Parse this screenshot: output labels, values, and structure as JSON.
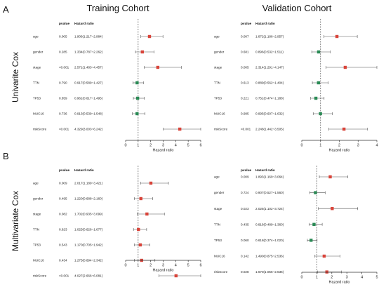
{
  "labels": {
    "panel_a": "A",
    "panel_b": "B",
    "training_title": "Training Cohort",
    "validation_title": "Validation Cohort",
    "row_a_title": "Univarite Cox",
    "row_b_title": "Multivariate Cox"
  },
  "colors": {
    "risk": "#d9443a",
    "protective": "#2a8a55",
    "ci_line": "#555555",
    "ref_line": "#555555",
    "axis": "#333333"
  },
  "chart_data": [
    {
      "type": "forest",
      "id": "uni-train",
      "header_pvalue": "pvalue",
      "header_hr": "Hazard ratio",
      "xlabel": "Hazard ratio",
      "xticks": [
        0,
        1,
        2,
        3,
        4,
        5,
        6
      ],
      "xlim": [
        0,
        6
      ],
      "ref_line": 1,
      "rows": [
        {
          "name": "age",
          "pvalue": "0.005",
          "hr_text": "1.906(1.217~2.984)",
          "hr": 1.906,
          "lo": 1.217,
          "hi": 2.984
        },
        {
          "name": "gender",
          "pvalue": "0.285",
          "hr_text": "1.334(0.787~2.262)",
          "hr": 1.334,
          "lo": 0.787,
          "hi": 2.262
        },
        {
          "name": "stage",
          "pvalue": "<0.001",
          "hr_text": "2.571(1.483~4.457)",
          "hr": 2.571,
          "lo": 1.483,
          "hi": 4.457
        },
        {
          "name": "TTN",
          "pvalue": "0.790",
          "hr_text": "0.917(0.589~1.427)",
          "hr": 0.917,
          "lo": 0.589,
          "hi": 1.427
        },
        {
          "name": "TP53",
          "pvalue": "0.859",
          "hr_text": "0.961(0.617~1.495)",
          "hr": 0.961,
          "lo": 0.617,
          "hi": 1.495
        },
        {
          "name": "MUC16",
          "pvalue": "0.736",
          "hr_text": "0.913(0.539~1.548)",
          "hr": 0.913,
          "lo": 0.539,
          "hi": 1.548
        },
        {
          "name": "riskScore",
          "pvalue": "<0.001",
          "hr_text": "4.329(3.003~6.242)",
          "hr": 4.329,
          "lo": 3.003,
          "hi": 6.242
        }
      ]
    },
    {
      "type": "forest",
      "id": "uni-valid",
      "header_pvalue": "pvalue",
      "header_hr": "Hazard ratio",
      "xlabel": "Hazard ratio",
      "xticks": [
        0,
        1,
        2,
        3,
        4
      ],
      "xlim": [
        0,
        4
      ],
      "ref_line": 1,
      "rows": [
        {
          "name": "age",
          "pvalue": "0.007",
          "hr_text": "1.872(1.186~2.957)",
          "hr": 1.872,
          "lo": 1.186,
          "hi": 2.957
        },
        {
          "name": "gender",
          "pvalue": "0.681",
          "hr_text": "0.896(0.532~1.511)",
          "hr": 0.896,
          "lo": 0.532,
          "hi": 1.511
        },
        {
          "name": "stage",
          "pvalue": "0.005",
          "hr_text": "2.314(1.291~4.147)",
          "hr": 2.314,
          "lo": 1.291,
          "hi": 4.147
        },
        {
          "name": "TTN",
          "pvalue": "0.613",
          "hr_text": "0.889(0.562~1.404)",
          "hr": 0.889,
          "lo": 0.562,
          "hi": 1.404
        },
        {
          "name": "TP53",
          "pvalue": "0.221",
          "hr_text": "0.751(0.474~1.188)",
          "hr": 0.751,
          "lo": 0.474,
          "hi": 1.188
        },
        {
          "name": "MUC16",
          "pvalue": "0.985",
          "hr_text": "0.995(0.607~1.632)",
          "hr": 0.995,
          "lo": 0.607,
          "hi": 1.632
        },
        {
          "name": "riskScore",
          "pvalue": "<0.001",
          "hr_text": "2.248(1.442~3.505)",
          "hr": 2.248,
          "lo": 1.442,
          "hi": 3.505
        }
      ]
    },
    {
      "type": "forest",
      "id": "multi-train",
      "header_pvalue": "pvalue",
      "header_hr": "Hazard ratio",
      "xlabel": "Hazard ratio",
      "xticks": [
        0,
        1,
        2,
        3,
        4,
        5,
        6
      ],
      "xlim": [
        0,
        6
      ],
      "ref_line": 1,
      "rows": [
        {
          "name": "age",
          "pvalue": "0.009",
          "hr_text": "2.017(1.189~3.421)",
          "hr": 2.017,
          "lo": 1.189,
          "hi": 3.421
        },
        {
          "name": "gender",
          "pvalue": "0.495",
          "hr_text": "1.220(0.688~2.160)",
          "hr": 1.22,
          "lo": 0.688,
          "hi": 2.16
        },
        {
          "name": "stage",
          "pvalue": "0.082",
          "hr_text": "1.702(0.935~3.099)",
          "hr": 1.702,
          "lo": 0.935,
          "hi": 3.099
        },
        {
          "name": "TTN",
          "pvalue": "0.923",
          "hr_text": "1.025(0.626~1.677)",
          "hr": 1.025,
          "lo": 0.626,
          "hi": 1.677
        },
        {
          "name": "TP53",
          "pvalue": "0.543",
          "hr_text": "1.170(0.705~1.942)",
          "hr": 1.17,
          "lo": 0.705,
          "hi": 1.942
        },
        {
          "name": "MUC16",
          "pvalue": "0.434",
          "hr_text": "1.275(0.694~2.342)",
          "hr": 1.275,
          "lo": 0.694,
          "hi": 2.342
        },
        {
          "name": "riskScore",
          "pvalue": "<0.001",
          "hr_text": "4.027(2.666~6.081)",
          "hr": 4.027,
          "lo": 2.666,
          "hi": 6.081
        }
      ]
    },
    {
      "type": "forest",
      "id": "multi-valid",
      "header_pvalue": "pvalue",
      "header_hr": "Hazard ratio",
      "xlabel": "Hazard ratio",
      "xticks": [
        0,
        1,
        2,
        3,
        4,
        5
      ],
      "xlim": [
        0,
        5
      ],
      "ref_line": 1,
      "rows": [
        {
          "name": "age",
          "pvalue": "0.009",
          "hr_text": "1.893(1.169~3.064)",
          "hr": 1.893,
          "lo": 1.169,
          "hi": 3.064
        },
        {
          "name": "gender",
          "pvalue": "0.724",
          "hr_text": "0.907(0.527~1.560)",
          "hr": 0.907,
          "lo": 0.527,
          "hi": 1.56
        },
        {
          "name": "stage",
          "pvalue": "0.023",
          "hr_text": "2.025(1.102~3.724)",
          "hr": 2.025,
          "lo": 1.102,
          "hi": 3.724
        },
        {
          "name": "TTN",
          "pvalue": "0.435",
          "hr_text": "0.816(0.489~1.360)",
          "hr": 0.816,
          "lo": 0.489,
          "hi": 1.36
        },
        {
          "name": "TP53",
          "pvalue": "0.060",
          "hr_text": "0.618(0.374~1.020)",
          "hr": 0.618,
          "lo": 0.374,
          "hi": 1.02
        },
        {
          "name": "MUC16",
          "pvalue": "0.142",
          "hr_text": "1.490(0.875~2.536)",
          "hr": 1.49,
          "lo": 0.875,
          "hi": 2.536
        },
        {
          "name": "riskScore",
          "pvalue": "0.028",
          "hr_text": "1.670(1.056~2.636)",
          "hr": 1.67,
          "lo": 1.056,
          "hi": 2.636
        }
      ]
    }
  ]
}
